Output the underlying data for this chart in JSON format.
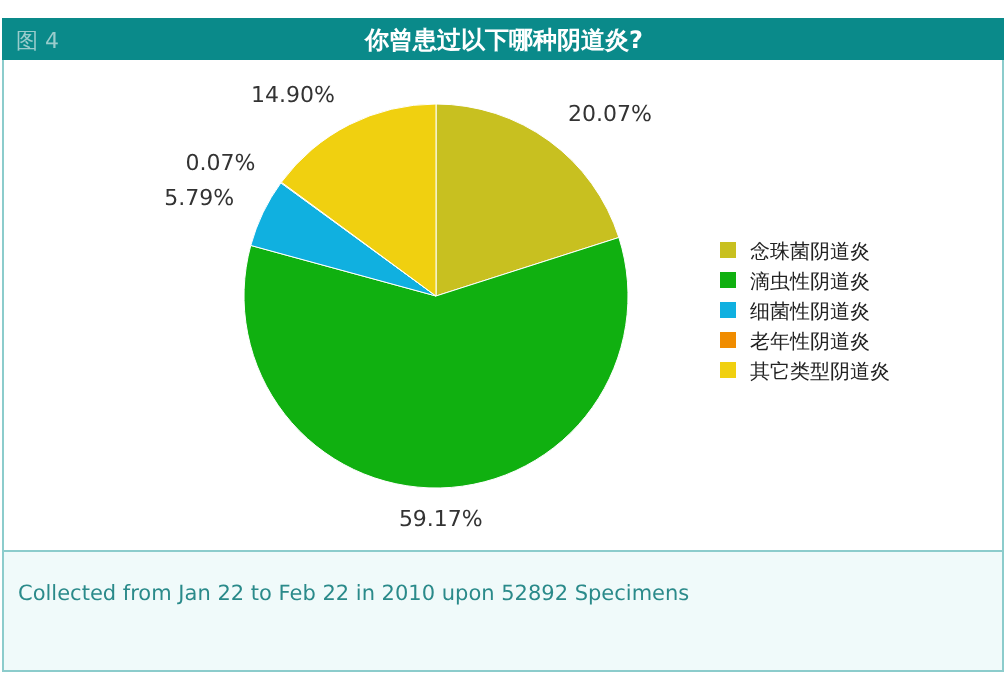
{
  "chart_data": {
    "type": "pie",
    "title": "你曾患过以下哪种阴道炎?",
    "categories": [
      "念珠菌阴道炎",
      "滴虫性阴道炎",
      "细菌性阴道炎",
      "老年性阴道炎",
      "其它类型阴道炎"
    ],
    "values": [
      20.07,
      59.17,
      5.79,
      0.07,
      14.9
    ],
    "value_labels": [
      "20.07%",
      "59.17%",
      "5.79%",
      "0.07%",
      "14.90%"
    ],
    "colors": [
      "#c8c020",
      "#10b010",
      "#10b0e0",
      "#f08c00",
      "#f0d010"
    ],
    "legend": "right",
    "annotations": [
      "图 4",
      "Collected from Jan 22 to Feb 22 in 2010 upon 52892 Specimens"
    ]
  }
}
